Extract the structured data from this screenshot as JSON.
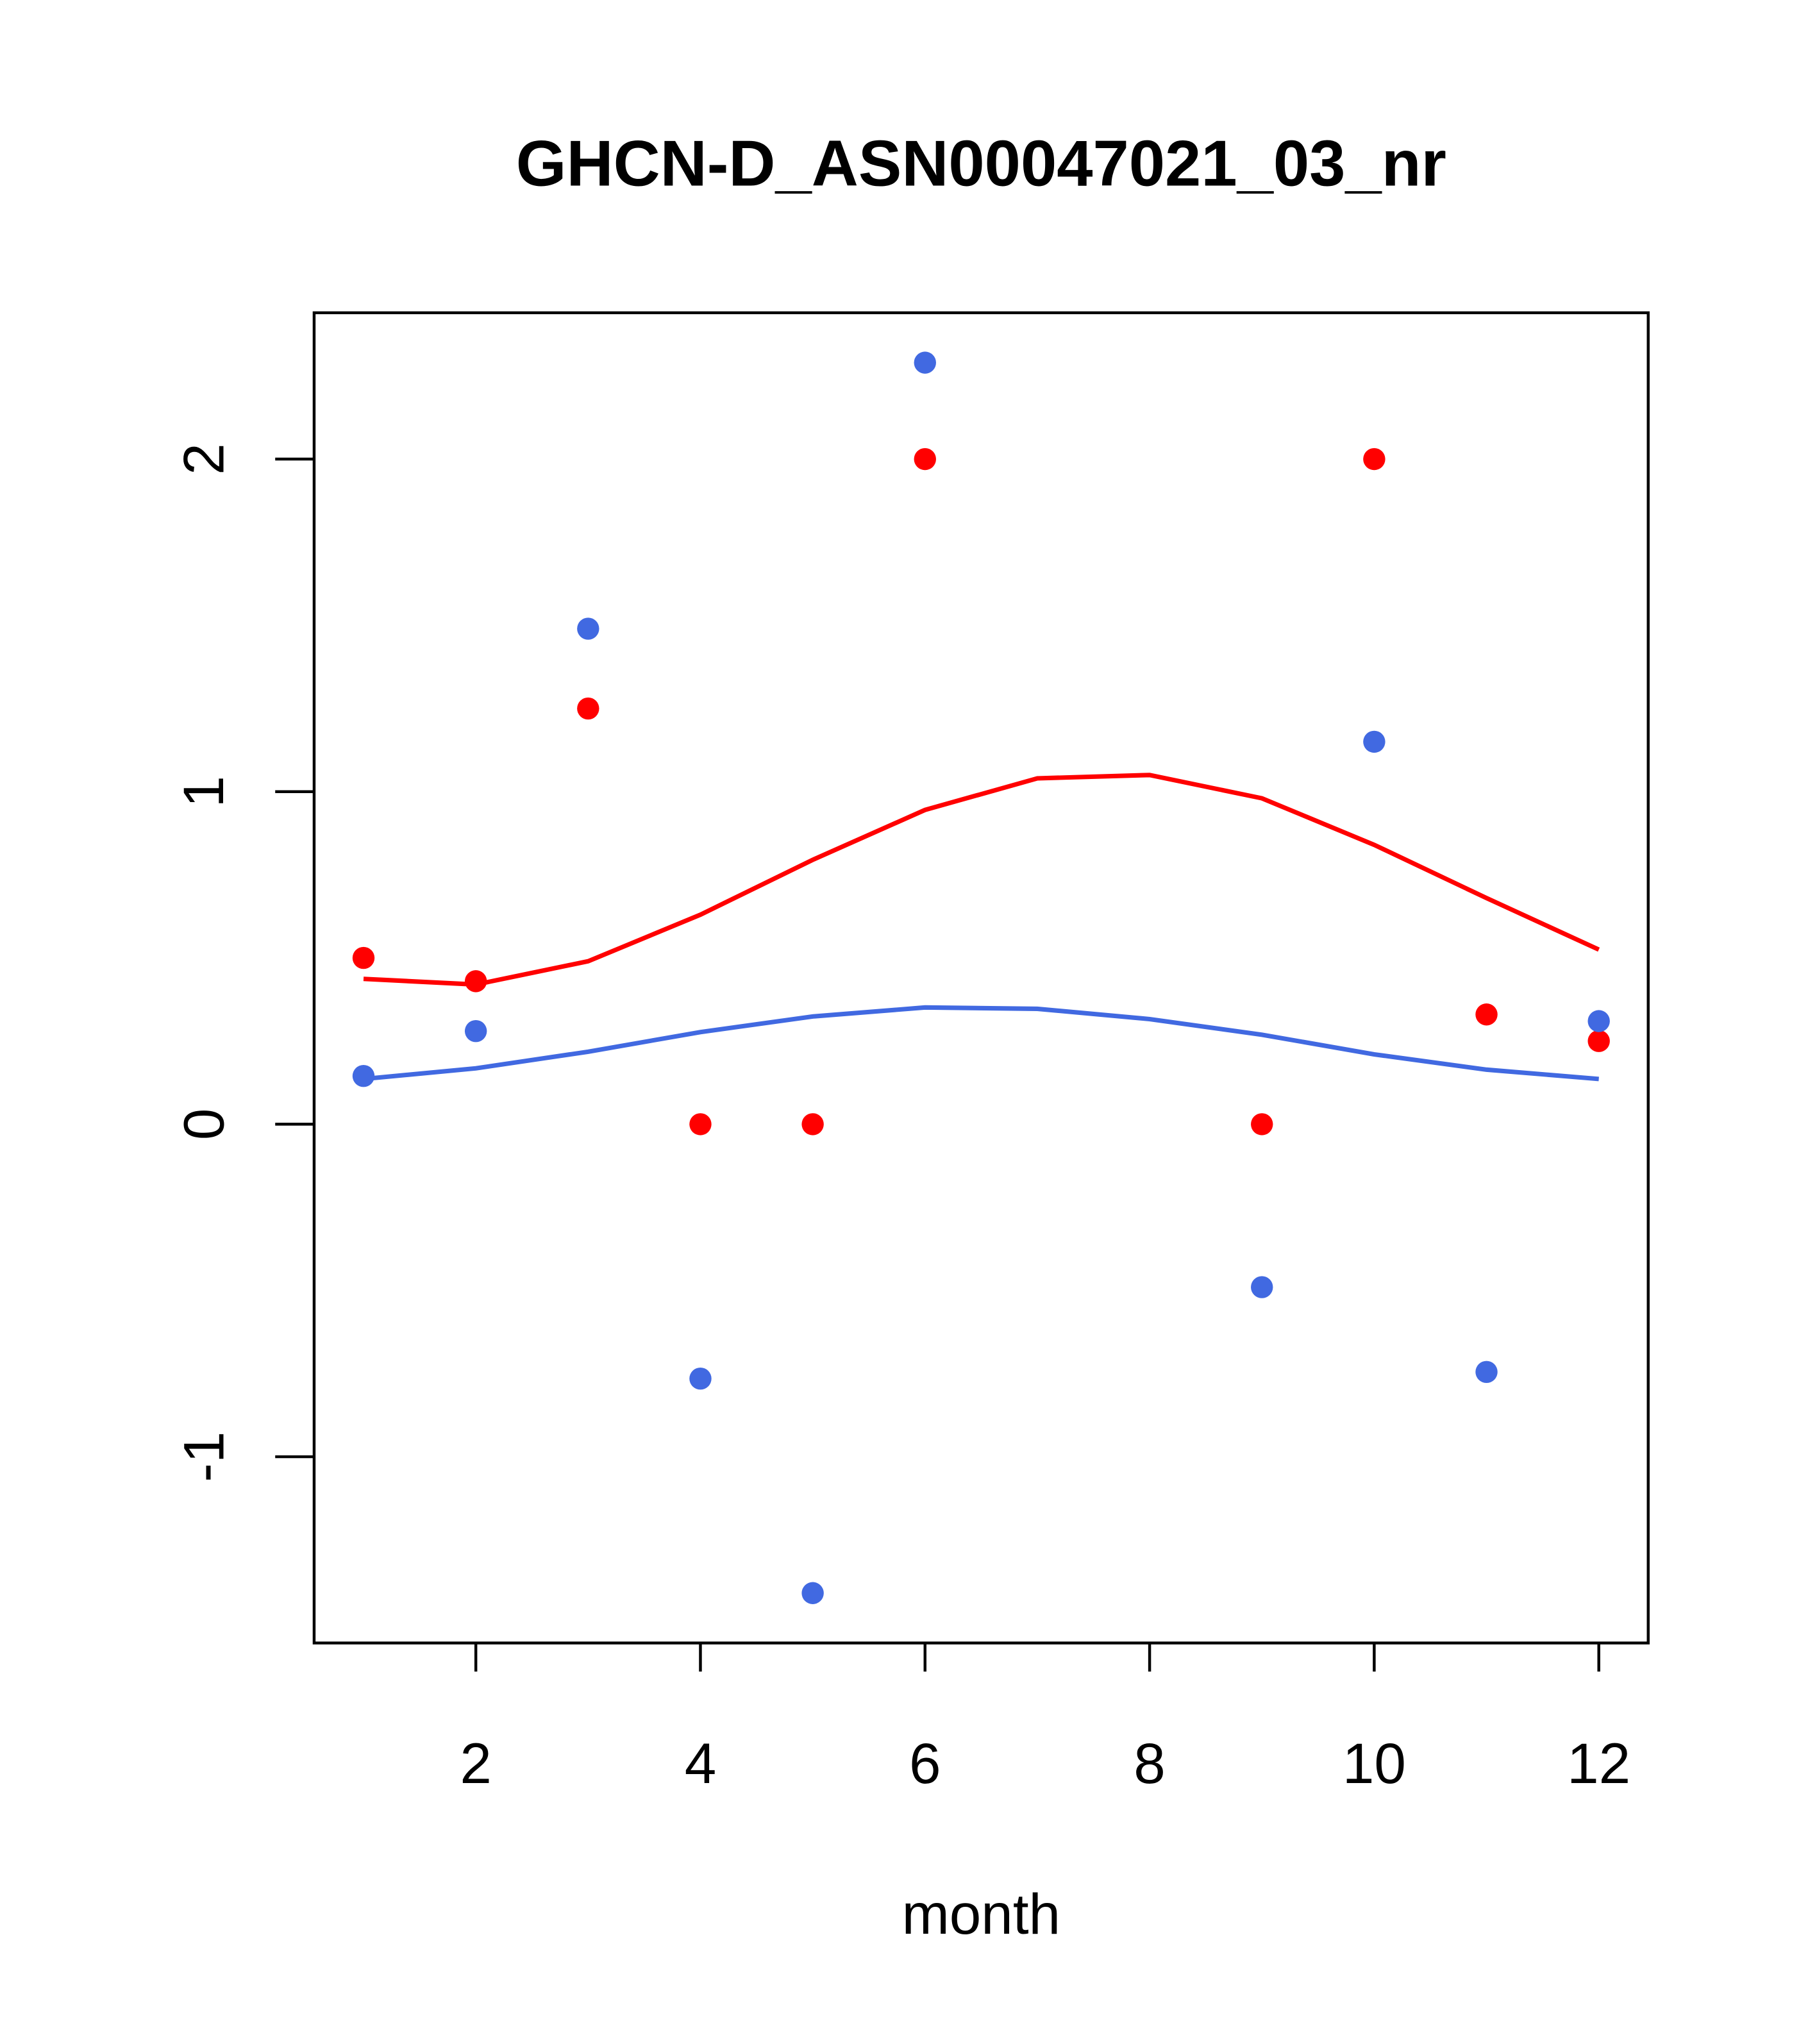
{
  "chart_data": {
    "type": "scatter",
    "title": "GHCN-D_ASN00047021_03_nr",
    "xlabel": "month",
    "ylabel": "",
    "xlim": [
      0.56,
      12.44
    ],
    "ylim": [
      -1.56,
      2.44
    ],
    "x_ticks": [
      2,
      4,
      6,
      8,
      10,
      12
    ],
    "x_tick_labels": [
      "2",
      "4",
      "6",
      "8",
      "10",
      "12"
    ],
    "y_ticks": [
      -1,
      0,
      1,
      2
    ],
    "y_tick_labels": [
      "-1",
      "0",
      "1",
      "2"
    ],
    "grid": false,
    "series": [
      {
        "name": "red points",
        "kind": "points",
        "color": "#ff0000",
        "x": [
          1,
          2,
          3,
          4,
          5,
          6,
          9,
          10,
          11,
          12
        ],
        "y": [
          0.5,
          0.43,
          1.25,
          0,
          0,
          2,
          0,
          2,
          0.33,
          0.25
        ]
      },
      {
        "name": "blue points",
        "kind": "points",
        "color": "#4169e1",
        "x": [
          1,
          2,
          3,
          4,
          5,
          6,
          9,
          10,
          11,
          12
        ],
        "y": [
          0.145,
          0.28,
          1.49,
          -0.765,
          -1.41,
          2.29,
          -0.49,
          1.15,
          -0.745,
          0.31
        ]
      },
      {
        "name": "red line",
        "kind": "line",
        "color": "#ff0000",
        "x": [
          1,
          2,
          3,
          4,
          5,
          6,
          7,
          8,
          9,
          10,
          11,
          12
        ],
        "y": [
          0.437,
          0.42,
          0.49,
          0.63,
          0.795,
          0.945,
          1.04,
          1.05,
          0.98,
          0.84,
          0.68,
          0.525
        ]
      },
      {
        "name": "blue line",
        "kind": "line",
        "color": "#4169e1",
        "x": [
          1,
          2,
          3,
          4,
          5,
          6,
          7,
          8,
          9,
          10,
          11,
          12
        ],
        "y": [
          0.136,
          0.168,
          0.218,
          0.277,
          0.324,
          0.351,
          0.347,
          0.316,
          0.269,
          0.21,
          0.164,
          0.136
        ]
      }
    ]
  }
}
